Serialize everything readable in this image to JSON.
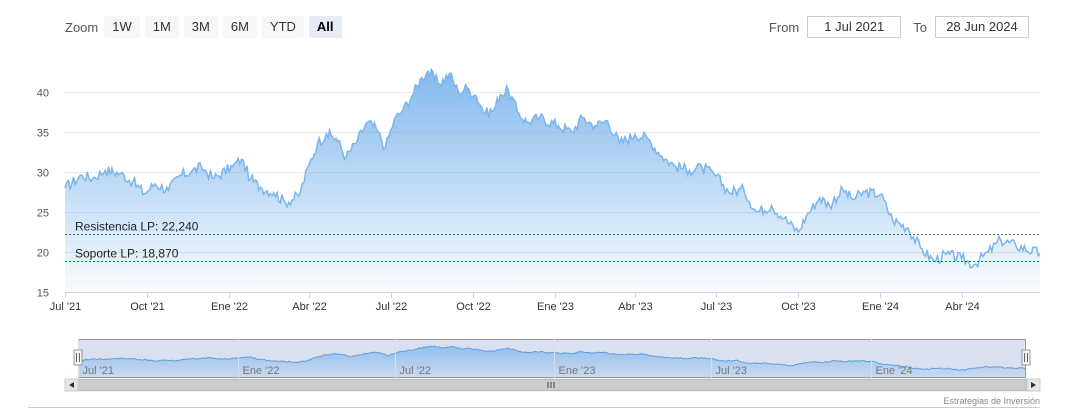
{
  "rangeSelector": {
    "zoom_label": "Zoom",
    "buttons": [
      "1W",
      "1M",
      "3M",
      "6M",
      "YTD",
      "All"
    ],
    "selected": "All",
    "from_label": "From",
    "from_value": "1 Jul 2021",
    "to_label": "To",
    "to_value": "28 Jun 2024"
  },
  "chart_data": {
    "type": "area",
    "title": "",
    "xlabel": "",
    "ylabel": "",
    "ylim": [
      15,
      45
    ],
    "y_ticks": [
      15,
      20,
      25,
      30,
      35,
      40
    ],
    "x_range": [
      "2021-07-01",
      "2024-06-28"
    ],
    "x_ticks": [
      {
        "date": "2021-07-01",
        "label": "Jul '21"
      },
      {
        "date": "2021-10-01",
        "label": "Oct '21"
      },
      {
        "date": "2022-01-01",
        "label": "Ene '22"
      },
      {
        "date": "2022-04-01",
        "label": "Abr '22"
      },
      {
        "date": "2022-07-01",
        "label": "Jul '22"
      },
      {
        "date": "2022-10-01",
        "label": "Oct '22"
      },
      {
        "date": "2023-01-01",
        "label": "Ene '23"
      },
      {
        "date": "2023-04-01",
        "label": "Abr '23"
      },
      {
        "date": "2023-07-01",
        "label": "Jul '23"
      },
      {
        "date": "2023-10-01",
        "label": "Oct '23"
      },
      {
        "date": "2024-01-01",
        "label": "Ene '24"
      },
      {
        "date": "2024-04-01",
        "label": "Abr '24"
      }
    ],
    "series": [
      {
        "color": "#7cb5ec",
        "points": [
          [
            "2021-07-01",
            28.0
          ],
          [
            "2021-07-20",
            29.6
          ],
          [
            "2021-08-01",
            29.2
          ],
          [
            "2021-08-15",
            30.2
          ],
          [
            "2021-09-01",
            29.8
          ],
          [
            "2021-09-15",
            28.8
          ],
          [
            "2021-09-28",
            27.3
          ],
          [
            "2021-10-10",
            28.5
          ],
          [
            "2021-10-25",
            27.7
          ],
          [
            "2021-11-05",
            29.4
          ],
          [
            "2021-11-20",
            30.1
          ],
          [
            "2021-12-01",
            30.6
          ],
          [
            "2021-12-15",
            29.2
          ],
          [
            "2022-01-05",
            30.7
          ],
          [
            "2022-01-15",
            31.6
          ],
          [
            "2022-01-25",
            29.1
          ],
          [
            "2022-02-05",
            28.1
          ],
          [
            "2022-02-20",
            27.4
          ],
          [
            "2022-03-05",
            26.2
          ],
          [
            "2022-03-20",
            27.0
          ],
          [
            "2022-04-01",
            31.0
          ],
          [
            "2022-04-10",
            33.5
          ],
          [
            "2022-04-20",
            34.8
          ],
          [
            "2022-05-01",
            34.2
          ],
          [
            "2022-05-12",
            31.8
          ],
          [
            "2022-05-25",
            34.0
          ],
          [
            "2022-06-05",
            36.2
          ],
          [
            "2022-06-15",
            35.4
          ],
          [
            "2022-06-25",
            33.0
          ],
          [
            "2022-07-05",
            36.5
          ],
          [
            "2022-07-15",
            37.8
          ],
          [
            "2022-07-25",
            39.5
          ],
          [
            "2022-08-05",
            41.8
          ],
          [
            "2022-08-12",
            42.6
          ],
          [
            "2022-08-25",
            41.0
          ],
          [
            "2022-09-05",
            42.3
          ],
          [
            "2022-09-15",
            40.0
          ],
          [
            "2022-09-25",
            40.5
          ],
          [
            "2022-10-05",
            39.5
          ],
          [
            "2022-10-15",
            37.3
          ],
          [
            "2022-10-25",
            37.8
          ],
          [
            "2022-11-01",
            39.7
          ],
          [
            "2022-11-10",
            40.2
          ],
          [
            "2022-11-20",
            37.6
          ],
          [
            "2022-12-01",
            36.2
          ],
          [
            "2022-12-15",
            36.8
          ],
          [
            "2023-01-05",
            35.8
          ],
          [
            "2023-01-20",
            35.0
          ],
          [
            "2023-02-01",
            36.8
          ],
          [
            "2023-02-15",
            35.8
          ],
          [
            "2023-03-01",
            36.4
          ],
          [
            "2023-03-15",
            33.6
          ],
          [
            "2023-04-01",
            34.7
          ],
          [
            "2023-04-15",
            34.2
          ],
          [
            "2023-05-01",
            32.0
          ],
          [
            "2023-05-15",
            30.8
          ],
          [
            "2023-06-01",
            30.2
          ],
          [
            "2023-06-15",
            30.6
          ],
          [
            "2023-07-01",
            29.5
          ],
          [
            "2023-07-15",
            27.5
          ],
          [
            "2023-08-01",
            27.8
          ],
          [
            "2023-08-15",
            25.0
          ],
          [
            "2023-09-01",
            25.8
          ],
          [
            "2023-09-15",
            24.2
          ],
          [
            "2023-10-01",
            22.5
          ],
          [
            "2023-10-10",
            24.5
          ],
          [
            "2023-10-25",
            26.8
          ],
          [
            "2023-11-05",
            25.8
          ],
          [
            "2023-11-20",
            27.8
          ],
          [
            "2023-12-01",
            26.6
          ],
          [
            "2023-12-15",
            27.5
          ],
          [
            "2024-01-01",
            27.2
          ],
          [
            "2024-01-15",
            24.0
          ],
          [
            "2024-02-01",
            23.0
          ],
          [
            "2024-02-15",
            20.5
          ],
          [
            "2024-03-01",
            18.9
          ],
          [
            "2024-03-15",
            19.7
          ],
          [
            "2024-04-01",
            19.2
          ],
          [
            "2024-04-15",
            18.4
          ],
          [
            "2024-05-01",
            20.0
          ],
          [
            "2024-05-15",
            21.5
          ],
          [
            "2024-06-01",
            20.8
          ],
          [
            "2024-06-28",
            19.8
          ]
        ]
      }
    ],
    "plot_lines": [
      {
        "label": "Resistencia LP: 22,240",
        "value": 22.24,
        "color": "#2e7d32"
      },
      {
        "label": "Soporte LP: 18,870",
        "value": 18.87,
        "color": "#c62828"
      }
    ],
    "navigator": {
      "tick_labels": [
        {
          "date": "2021-07-01",
          "label": "Jul '21"
        },
        {
          "date": "2022-01-01",
          "label": "Ene '22"
        },
        {
          "date": "2022-07-01",
          "label": "Jul '22"
        },
        {
          "date": "2023-01-01",
          "label": "Ene '23"
        },
        {
          "date": "2023-07-01",
          "label": "Jul '23"
        },
        {
          "date": "2024-01-01",
          "label": "Ene '24"
        }
      ]
    },
    "credit": "Estrategias de Inversión"
  }
}
